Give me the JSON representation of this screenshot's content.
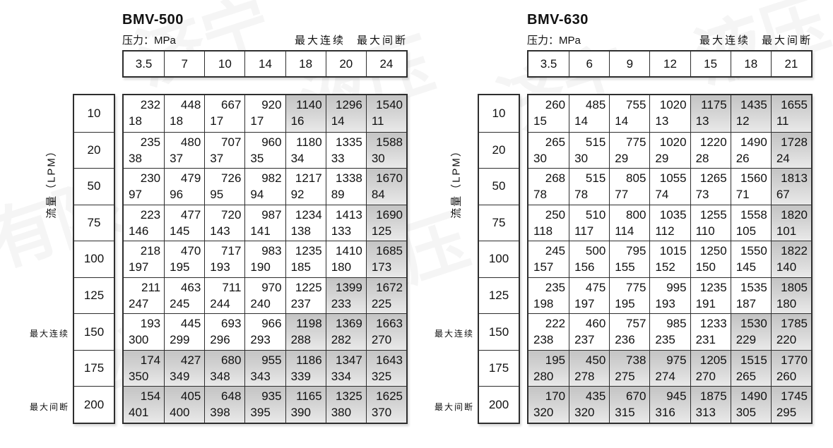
{
  "labels": {
    "pressure": "压力：MPa",
    "flow": "流量（LPM）",
    "max_continuous": "最大连续",
    "max_intermittent": "最大间断"
  },
  "watermark": {
    "texts": [
      "济宁",
      "液压",
      "有限",
      "公司",
      "液压",
      "济宁",
      "有限",
      "液压"
    ]
  },
  "colors": {
    "shaded_cell_top": "#c4c4c4",
    "shaded_cell_bottom": "#e9e9e9",
    "border": "#2e2e2e",
    "background": "#ffffff"
  },
  "tables": [
    {
      "model": "BMV-500",
      "pressures": [
        "3.5",
        "7",
        "10",
        "14",
        "18",
        "20",
        "24"
      ],
      "rows": [
        {
          "flow": "10",
          "cells": [
            [
              "232",
              "18",
              0
            ],
            [
              "448",
              "18",
              0
            ],
            [
              "667",
              "17",
              0
            ],
            [
              "920",
              "17",
              0
            ],
            [
              "1140",
              "16",
              1
            ],
            [
              "1296",
              "14",
              1
            ],
            [
              "1540",
              "11",
              1
            ]
          ]
        },
        {
          "flow": "20",
          "cells": [
            [
              "235",
              "38",
              0
            ],
            [
              "480",
              "37",
              0
            ],
            [
              "707",
              "37",
              0
            ],
            [
              "960",
              "35",
              0
            ],
            [
              "1180",
              "34",
              0
            ],
            [
              "1335",
              "33",
              0
            ],
            [
              "1588",
              "30",
              1
            ]
          ]
        },
        {
          "flow": "50",
          "cells": [
            [
              "230",
              "97",
              0
            ],
            [
              "479",
              "96",
              0
            ],
            [
              "726",
              "95",
              0
            ],
            [
              "982",
              "94",
              0
            ],
            [
              "1217",
              "92",
              0
            ],
            [
              "1338",
              "89",
              0
            ],
            [
              "1670",
              "84",
              1
            ]
          ]
        },
        {
          "flow": "75",
          "cells": [
            [
              "223",
              "146",
              0
            ],
            [
              "477",
              "145",
              0
            ],
            [
              "720",
              "143",
              0
            ],
            [
              "987",
              "141",
              0
            ],
            [
              "1234",
              "138",
              0
            ],
            [
              "1413",
              "133",
              0
            ],
            [
              "1690",
              "125",
              1
            ]
          ]
        },
        {
          "flow": "100",
          "cells": [
            [
              "218",
              "197",
              0
            ],
            [
              "470",
              "195",
              0
            ],
            [
              "717",
              "193",
              0
            ],
            [
              "983",
              "190",
              0
            ],
            [
              "1235",
              "185",
              0
            ],
            [
              "1410",
              "180",
              0
            ],
            [
              "1685",
              "173",
              1
            ]
          ]
        },
        {
          "flow": "125",
          "cells": [
            [
              "211",
              "247",
              0
            ],
            [
              "463",
              "245",
              0
            ],
            [
              "711",
              "244",
              0
            ],
            [
              "970",
              "240",
              0
            ],
            [
              "1225",
              "237",
              0
            ],
            [
              "1399",
              "233",
              1
            ],
            [
              "1672",
              "225",
              1
            ]
          ]
        },
        {
          "flow": "150",
          "cells": [
            [
              "193",
              "300",
              0
            ],
            [
              "445",
              "299",
              0
            ],
            [
              "693",
              "296",
              0
            ],
            [
              "966",
              "293",
              0
            ],
            [
              "1198",
              "288",
              1
            ],
            [
              "1369",
              "282",
              1
            ],
            [
              "1663",
              "270",
              1
            ]
          ]
        },
        {
          "flow": "175",
          "cells": [
            [
              "174",
              "350",
              1
            ],
            [
              "427",
              "349",
              1
            ],
            [
              "680",
              "348",
              1
            ],
            [
              "955",
              "343",
              1
            ],
            [
              "1186",
              "339",
              1
            ],
            [
              "1347",
              "334",
              1
            ],
            [
              "1643",
              "325",
              1
            ]
          ]
        },
        {
          "flow": "200",
          "cells": [
            [
              "154",
              "401",
              1
            ],
            [
              "405",
              "400",
              1
            ],
            [
              "648",
              "398",
              1
            ],
            [
              "935",
              "395",
              1
            ],
            [
              "1165",
              "390",
              1
            ],
            [
              "1325",
              "380",
              1
            ],
            [
              "1625",
              "370",
              1
            ]
          ]
        }
      ]
    },
    {
      "model": "BMV-630",
      "pressures": [
        "3.5",
        "6",
        "9",
        "12",
        "15",
        "18",
        "21"
      ],
      "rows": [
        {
          "flow": "10",
          "cells": [
            [
              "260",
              "15",
              0
            ],
            [
              "485",
              "14",
              0
            ],
            [
              "755",
              "14",
              0
            ],
            [
              "1020",
              "13",
              0
            ],
            [
              "1175",
              "13",
              1
            ],
            [
              "1435",
              "12",
              1
            ],
            [
              "1655",
              "11",
              1
            ]
          ]
        },
        {
          "flow": "20",
          "cells": [
            [
              "265",
              "30",
              0
            ],
            [
              "515",
              "30",
              0
            ],
            [
              "775",
              "29",
              0
            ],
            [
              "1020",
              "29",
              0
            ],
            [
              "1220",
              "28",
              0
            ],
            [
              "1490",
              "26",
              0
            ],
            [
              "1728",
              "24",
              1
            ]
          ]
        },
        {
          "flow": "50",
          "cells": [
            [
              "268",
              "78",
              0
            ],
            [
              "515",
              "78",
              0
            ],
            [
              "805",
              "77",
              0
            ],
            [
              "1055",
              "74",
              0
            ],
            [
              "1265",
              "73",
              0
            ],
            [
              "1560",
              "71",
              0
            ],
            [
              "1813",
              "67",
              1
            ]
          ]
        },
        {
          "flow": "75",
          "cells": [
            [
              "250",
              "118",
              0
            ],
            [
              "510",
              "117",
              0
            ],
            [
              "800",
              "114",
              0
            ],
            [
              "1035",
              "112",
              0
            ],
            [
              "1255",
              "110",
              0
            ],
            [
              "1558",
              "105",
              0
            ],
            [
              "1820",
              "101",
              1
            ]
          ]
        },
        {
          "flow": "100",
          "cells": [
            [
              "245",
              "157",
              0
            ],
            [
              "500",
              "156",
              0
            ],
            [
              "795",
              "155",
              0
            ],
            [
              "1015",
              "152",
              0
            ],
            [
              "1250",
              "150",
              0
            ],
            [
              "1550",
              "145",
              0
            ],
            [
              "1822",
              "140",
              1
            ]
          ]
        },
        {
          "flow": "125",
          "cells": [
            [
              "235",
              "198",
              0
            ],
            [
              "475",
              "197",
              0
            ],
            [
              "775",
              "195",
              0
            ],
            [
              "995",
              "193",
              0
            ],
            [
              "1235",
              "191",
              0
            ],
            [
              "1535",
              "187",
              0
            ],
            [
              "1805",
              "180",
              1
            ]
          ]
        },
        {
          "flow": "150",
          "cells": [
            [
              "222",
              "238",
              0
            ],
            [
              "460",
              "237",
              0
            ],
            [
              "757",
              "236",
              0
            ],
            [
              "985",
              "235",
              0
            ],
            [
              "1233",
              "231",
              0
            ],
            [
              "1530",
              "229",
              1
            ],
            [
              "1785",
              "220",
              1
            ]
          ]
        },
        {
          "flow": "175",
          "cells": [
            [
              "195",
              "280",
              1
            ],
            [
              "450",
              "278",
              1
            ],
            [
              "738",
              "275",
              1
            ],
            [
              "975",
              "274",
              1
            ],
            [
              "1205",
              "270",
              1
            ],
            [
              "1515",
              "265",
              1
            ],
            [
              "1770",
              "260",
              1
            ]
          ]
        },
        {
          "flow": "200",
          "cells": [
            [
              "170",
              "320",
              1
            ],
            [
              "435",
              "320",
              1
            ],
            [
              "670",
              "315",
              1
            ],
            [
              "945",
              "316",
              1
            ],
            [
              "1875",
              "313",
              1
            ],
            [
              "1490",
              "305",
              1
            ],
            [
              "1745",
              "295",
              1
            ]
          ]
        }
      ]
    }
  ]
}
